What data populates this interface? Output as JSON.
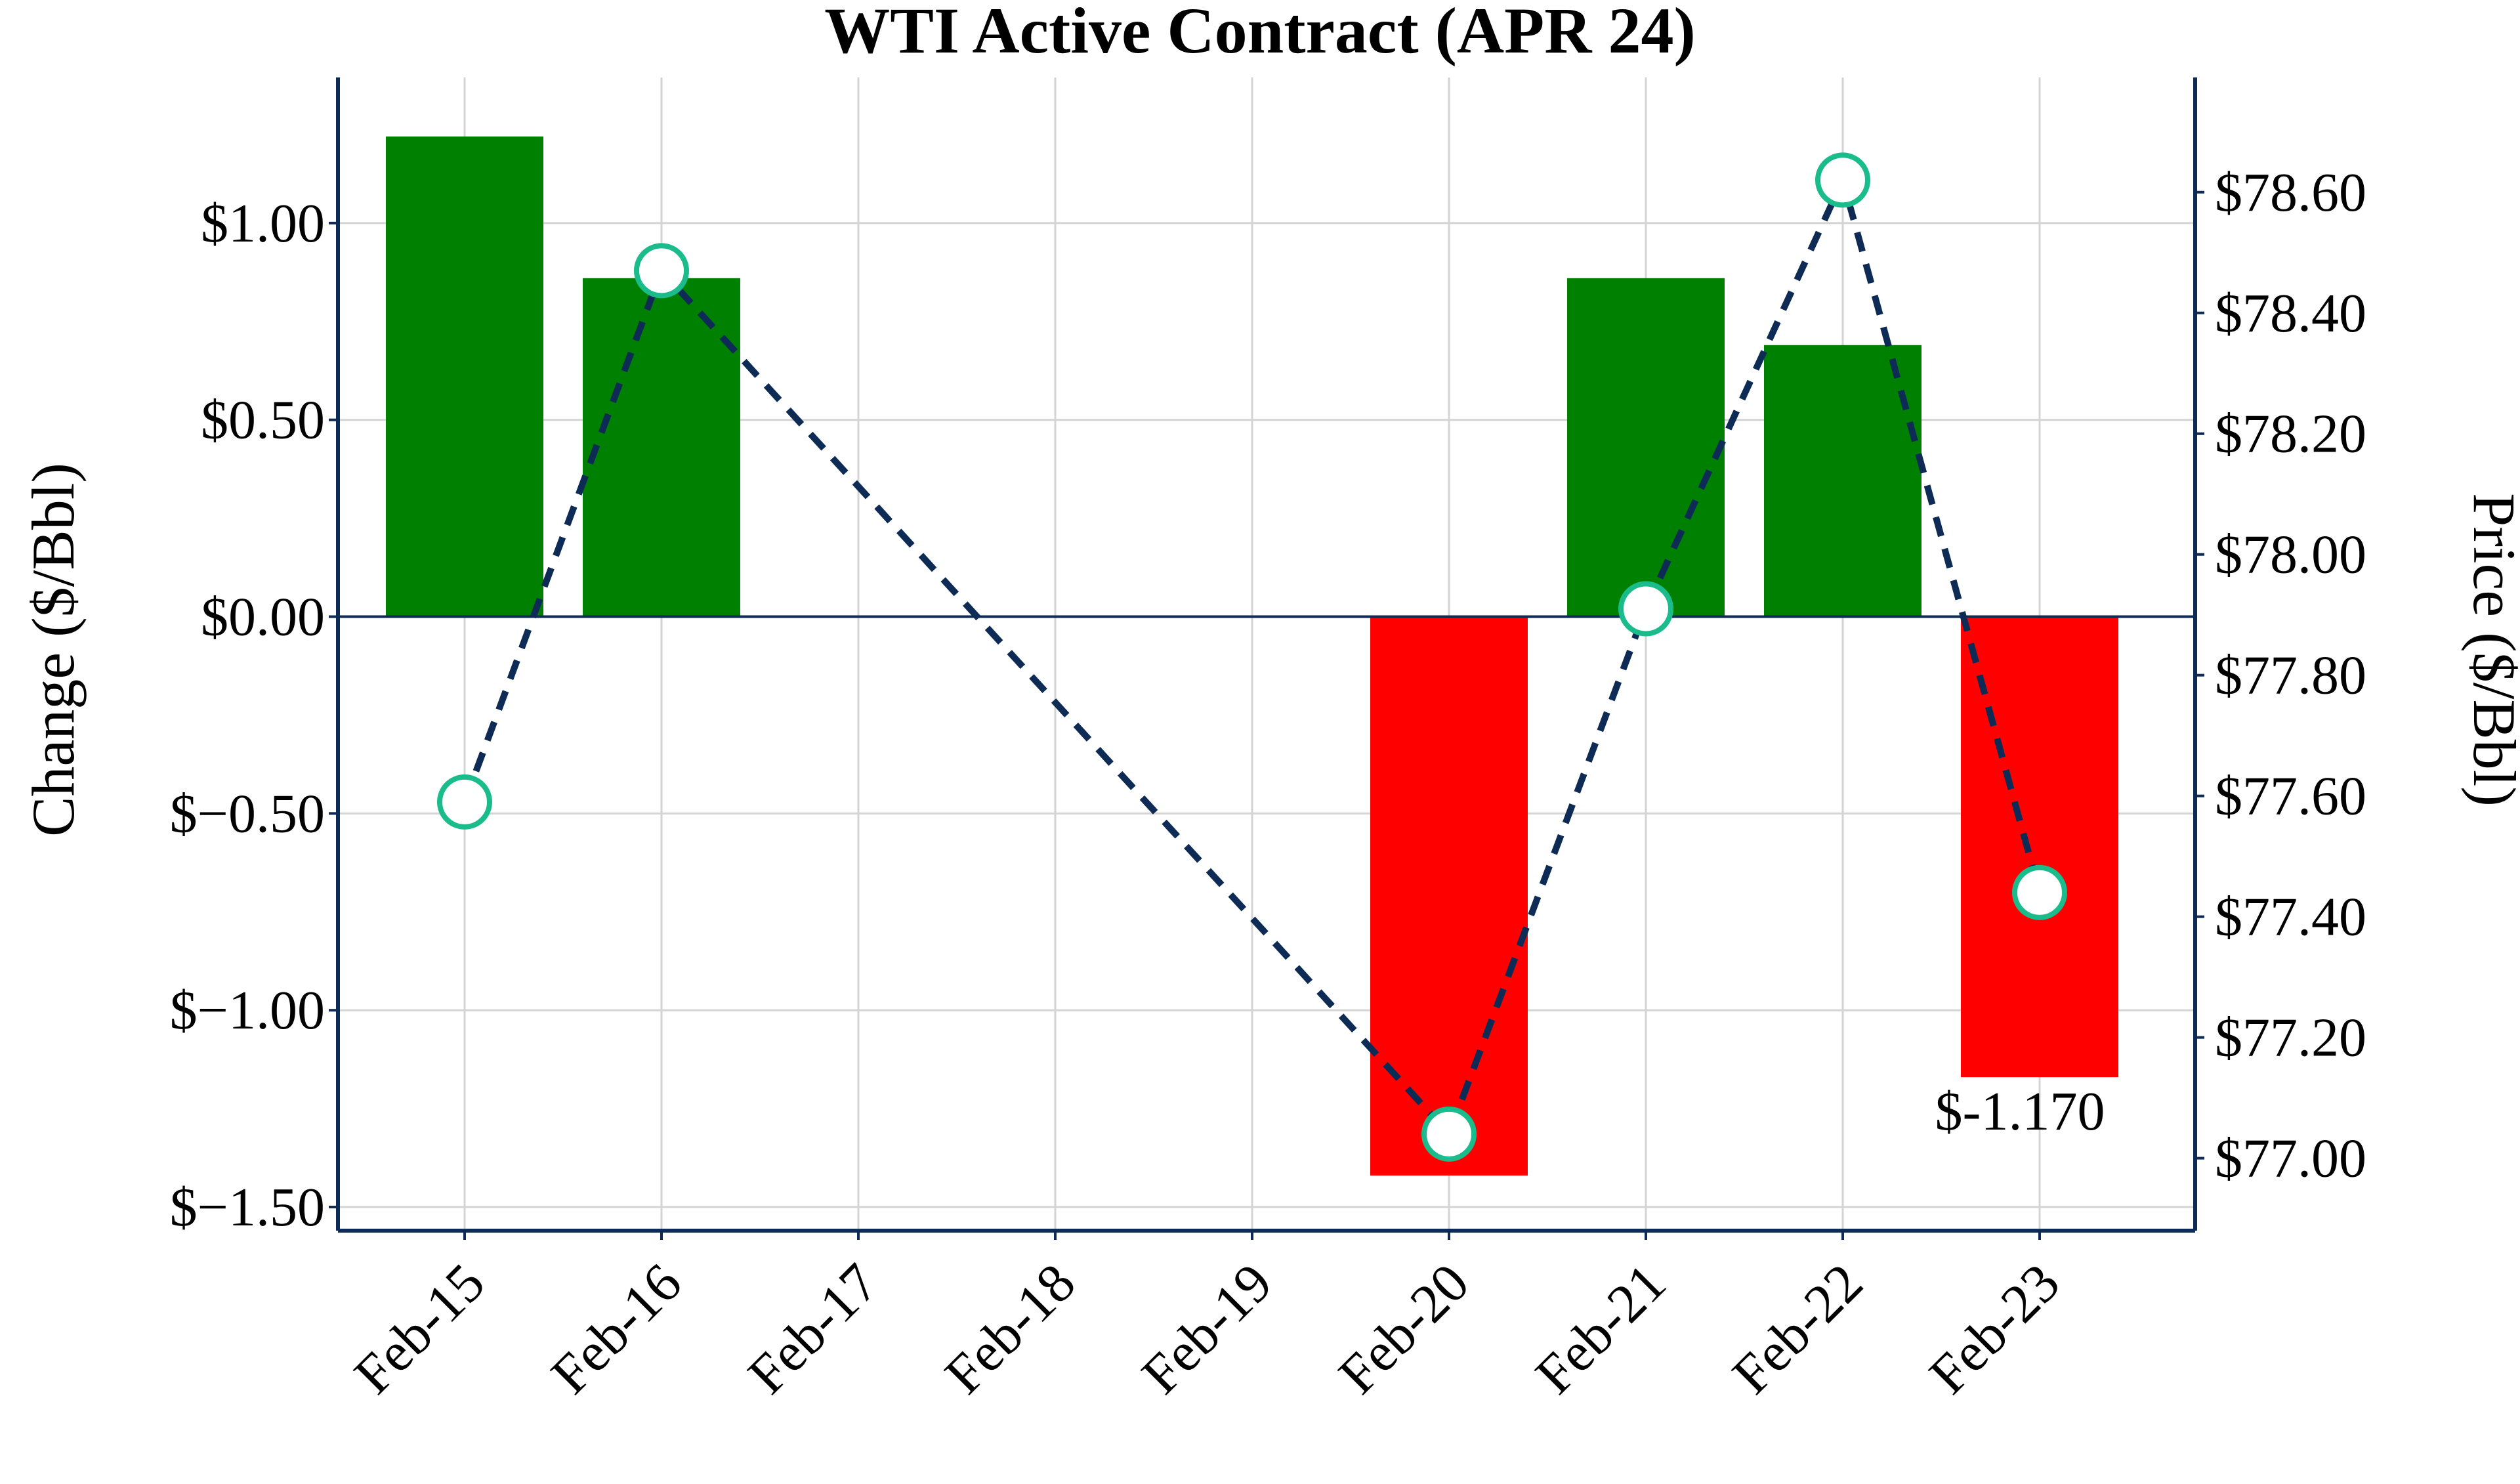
{
  "chart_data": {
    "type": "bar+line",
    "title": "WTI Active Contract (APR 24)",
    "categories": [
      "Feb-15",
      "Feb-16",
      "Feb-17",
      "Feb-18",
      "Feb-19",
      "Feb-20",
      "Feb-21",
      "Feb-22",
      "Feb-23"
    ],
    "left_axis": {
      "label": "Change ($/Bbl)",
      "ylim": [
        -1.56,
        1.37
      ],
      "ticks": [
        1.0,
        0.5,
        0.0,
        -0.5,
        -1.0,
        -1.5
      ],
      "tick_labels": [
        "$1.00",
        "$0.50",
        "$0.00",
        "$−0.50",
        "$−1.00",
        "$−1.50"
      ]
    },
    "right_axis": {
      "label": "Price ($/Bbl)",
      "ylim": [
        76.88,
        78.79
      ],
      "ticks": [
        78.6,
        78.4,
        78.2,
        78.0,
        77.8,
        77.6,
        77.4,
        77.2,
        77.0
      ],
      "tick_labels": [
        "$78.60",
        "$78.40",
        "$78.20",
        "$78.00",
        "$77.80",
        "$77.60",
        "$77.40",
        "$77.20",
        "$77.00"
      ]
    },
    "bar_series": {
      "name": "Change",
      "values": [
        1.22,
        0.86,
        null,
        null,
        null,
        -1.42,
        0.86,
        0.69,
        -1.17
      ],
      "positive_color": "#008000",
      "negative_color": "#ff0000"
    },
    "line_series": {
      "name": "Price",
      "values": [
        77.59,
        78.47,
        null,
        null,
        null,
        77.04,
        77.91,
        78.62,
        77.44
      ],
      "line_color": "#0d2b55",
      "marker_edge_color": "#1abc8c",
      "marker_fill": "#ffffff"
    },
    "annotation": {
      "text": "$-1.170",
      "category": "Feb-23"
    },
    "grid": true,
    "frame_color": "#0d2b55",
    "zero_line_color": "#0d2b55"
  }
}
